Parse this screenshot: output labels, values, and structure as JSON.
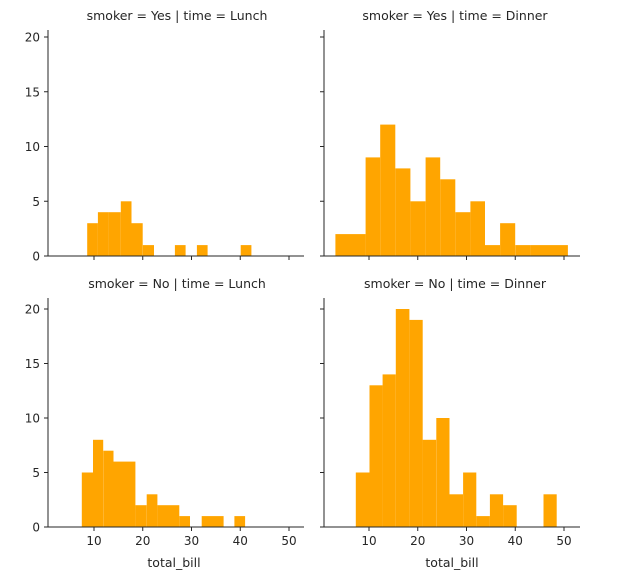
{
  "chart_data": {
    "type": "bar",
    "layout": "facet-grid-2x2",
    "bar_color": "#ffa500",
    "axis_color": "#262626",
    "xlim": [
      1,
      53
    ],
    "ylim": [
      0,
      21
    ],
    "x_ticks": [
      10,
      20,
      30,
      40,
      50
    ],
    "y_ticks": [
      0,
      5,
      10,
      15,
      20
    ],
    "xlabel": "total_bill",
    "facets": [
      {
        "title": "smoker = Yes | time = Lunch",
        "bins": [
          {
            "x0": 8.6,
            "x1": 10.8,
            "count": 3
          },
          {
            "x0": 10.8,
            "x1": 13.0,
            "count": 4
          },
          {
            "x0": 13.0,
            "x1": 15.5,
            "count": 4
          },
          {
            "x0": 15.5,
            "x1": 17.7,
            "count": 5
          },
          {
            "x0": 17.7,
            "x1": 20.0,
            "count": 3
          },
          {
            "x0": 20.0,
            "x1": 22.3,
            "count": 1
          },
          {
            "x0": 26.6,
            "x1": 28.8,
            "count": 1
          },
          {
            "x0": 31.1,
            "x1": 33.3,
            "count": 1
          },
          {
            "x0": 40.1,
            "x1": 42.3,
            "count": 1
          }
        ]
      },
      {
        "title": "smoker = Yes | time = Dinner",
        "bins": [
          {
            "x0": 3.1,
            "x1": 6.2,
            "count": 2
          },
          {
            "x0": 6.2,
            "x1": 9.3,
            "count": 2
          },
          {
            "x0": 9.3,
            "x1": 12.3,
            "count": 9
          },
          {
            "x0": 12.3,
            "x1": 15.4,
            "count": 12
          },
          {
            "x0": 15.4,
            "x1": 18.5,
            "count": 8
          },
          {
            "x0": 18.5,
            "x1": 21.6,
            "count": 5
          },
          {
            "x0": 21.6,
            "x1": 24.6,
            "count": 9
          },
          {
            "x0": 24.6,
            "x1": 27.7,
            "count": 7
          },
          {
            "x0": 27.7,
            "x1": 30.8,
            "count": 4
          },
          {
            "x0": 30.8,
            "x1": 33.8,
            "count": 5
          },
          {
            "x0": 33.8,
            "x1": 36.9,
            "count": 1
          },
          {
            "x0": 36.9,
            "x1": 40.0,
            "count": 3
          },
          {
            "x0": 40.0,
            "x1": 43.1,
            "count": 1
          },
          {
            "x0": 43.1,
            "x1": 46.1,
            "count": 1
          },
          {
            "x0": 46.1,
            "x1": 50.8,
            "count": 1
          }
        ]
      },
      {
        "title": "smoker = No | time = Lunch",
        "bins": [
          {
            "x0": 7.5,
            "x1": 9.8,
            "count": 5
          },
          {
            "x0": 9.8,
            "x1": 11.9,
            "count": 8
          },
          {
            "x0": 11.9,
            "x1": 14.0,
            "count": 7
          },
          {
            "x0": 14.0,
            "x1": 18.5,
            "count": 6
          },
          {
            "x0": 18.5,
            "x1": 20.8,
            "count": 2
          },
          {
            "x0": 20.8,
            "x1": 23.0,
            "count": 3
          },
          {
            "x0": 23.0,
            "x1": 27.5,
            "count": 2
          },
          {
            "x0": 27.5,
            "x1": 29.7,
            "count": 1
          },
          {
            "x0": 32.1,
            "x1": 36.6,
            "count": 1
          },
          {
            "x0": 38.8,
            "x1": 41.0,
            "count": 1
          }
        ]
      },
      {
        "title": "smoker = No | time = Dinner",
        "bins": [
          {
            "x0": 7.3,
            "x1": 10.1,
            "count": 5
          },
          {
            "x0": 10.1,
            "x1": 12.8,
            "count": 13
          },
          {
            "x0": 12.8,
            "x1": 15.5,
            "count": 14
          },
          {
            "x0": 15.5,
            "x1": 18.3,
            "count": 20
          },
          {
            "x0": 18.3,
            "x1": 21.0,
            "count": 19
          },
          {
            "x0": 21.0,
            "x1": 23.8,
            "count": 8
          },
          {
            "x0": 23.8,
            "x1": 26.5,
            "count": 10
          },
          {
            "x0": 26.5,
            "x1": 29.3,
            "count": 3
          },
          {
            "x0": 29.3,
            "x1": 32.0,
            "count": 5
          },
          {
            "x0": 32.0,
            "x1": 34.8,
            "count": 1
          },
          {
            "x0": 34.8,
            "x1": 37.5,
            "count": 3
          },
          {
            "x0": 37.5,
            "x1": 40.3,
            "count": 2
          },
          {
            "x0": 45.8,
            "x1": 48.5,
            "count": 3
          }
        ]
      }
    ]
  }
}
